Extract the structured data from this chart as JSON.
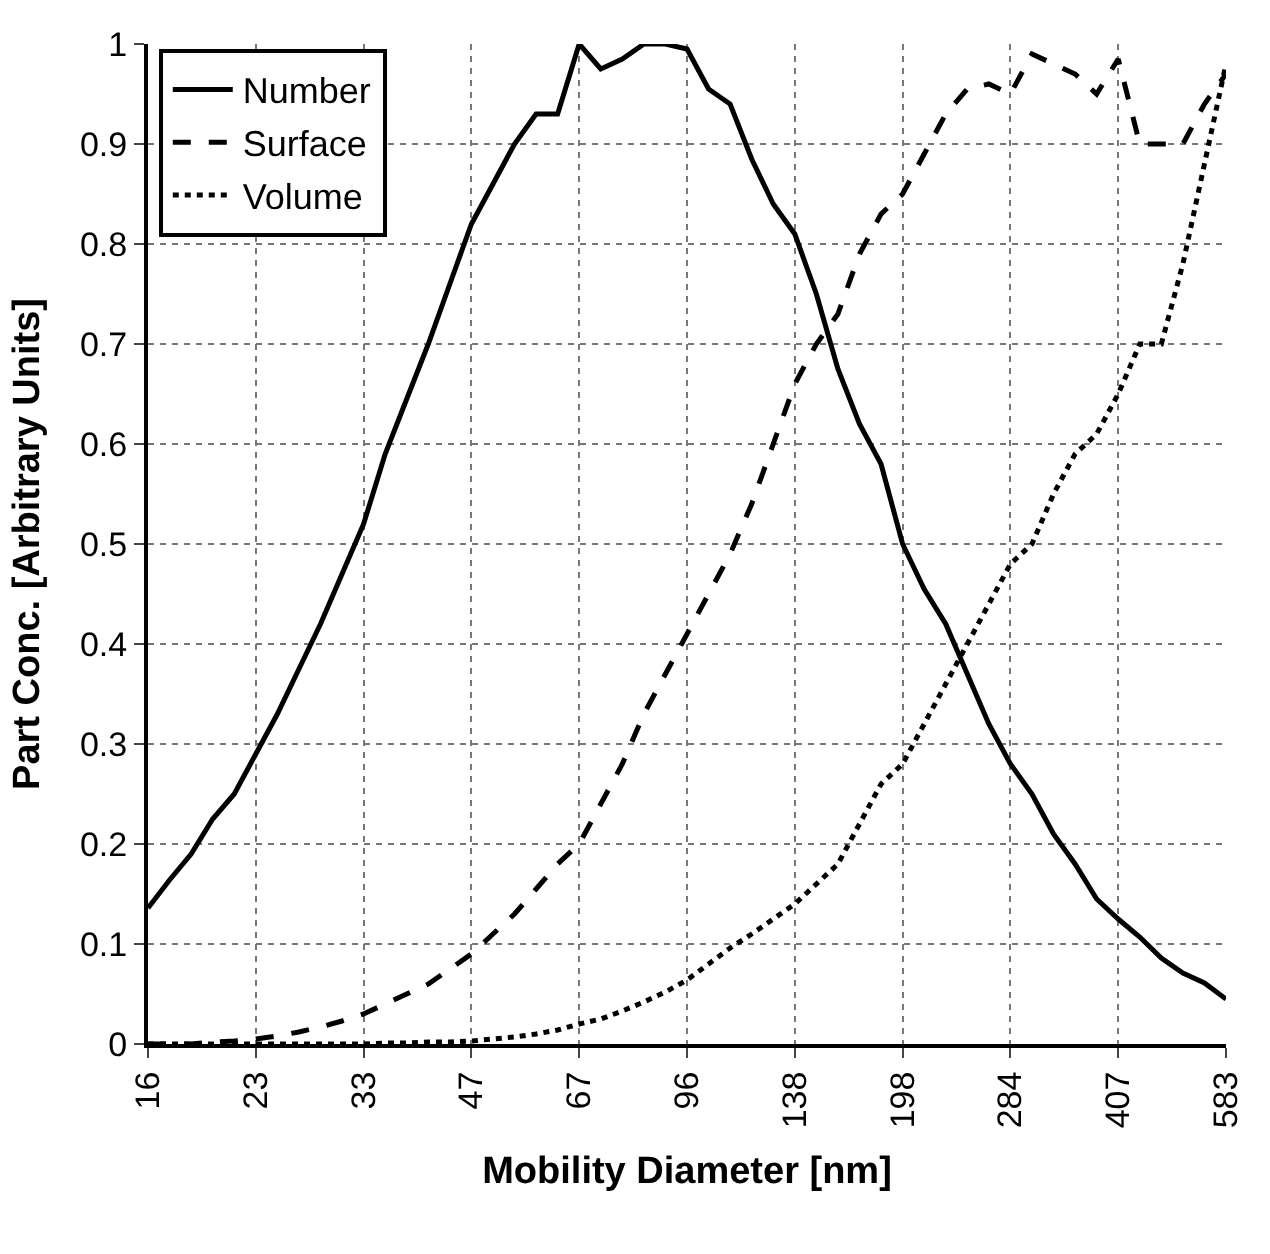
{
  "chart_data": {
    "type": "line",
    "xlabel": "Mobility Diameter [nm]",
    "ylabel": "Part Conc. [Arbitrary Units]",
    "categories": [
      "16",
      null,
      null,
      null,
      null,
      "23",
      null,
      null,
      null,
      null,
      "33",
      null,
      null,
      null,
      null,
      "47",
      null,
      null,
      null,
      null,
      "67",
      null,
      null,
      null,
      null,
      "96",
      null,
      null,
      null,
      null,
      "138",
      null,
      null,
      null,
      null,
      "198",
      null,
      null,
      null,
      null,
      "284",
      null,
      null,
      null,
      null,
      "407",
      null,
      null,
      null,
      null,
      "583"
    ],
    "series": [
      {
        "name": "Number",
        "color": "#000000",
        "line_style": "solid",
        "values": [
          0.136,
          0.164,
          0.19,
          0.225,
          0.25,
          0.29,
          0.33,
          0.375,
          0.42,
          0.47,
          0.52,
          0.59,
          0.645,
          0.7,
          0.76,
          0.82,
          0.86,
          0.9,
          0.93,
          0.93,
          1.0,
          0.975,
          0.985,
          1.0,
          1.0,
          0.995,
          0.955,
          0.94,
          0.885,
          0.84,
          0.81,
          0.75,
          0.675,
          0.62,
          0.58,
          0.5,
          0.455,
          0.42,
          0.37,
          0.32,
          0.28,
          0.25,
          0.21,
          0.18,
          0.145,
          0.125,
          0.107,
          0.086,
          0.071,
          0.061,
          0.045
        ]
      },
      {
        "name": "Surface",
        "color": "#000000",
        "line_style": "dashed",
        "values": [
          0,
          0,
          0,
          0.002,
          0.003,
          0.005,
          0.008,
          0.012,
          0.017,
          0.023,
          0.03,
          0.04,
          0.05,
          0.06,
          0.075,
          0.09,
          0.11,
          0.13,
          0.155,
          0.18,
          0.2,
          0.24,
          0.28,
          0.33,
          0.37,
          0.41,
          0.45,
          0.49,
          0.54,
          0.6,
          0.66,
          0.7,
          0.73,
          0.79,
          0.83,
          0.85,
          0.89,
          0.93,
          0.955,
          0.96,
          0.95,
          0.99,
          0.98,
          0.97,
          0.95,
          0.985,
          0.9,
          0.9,
          0.9,
          0.94,
          0.97
        ]
      },
      {
        "name": "Volume",
        "color": "#000000",
        "line_style": "dotted",
        "values": [
          0,
          0,
          0,
          0,
          0,
          0,
          0,
          0,
          0,
          0,
          0,
          0.001,
          0.001,
          0.002,
          0.002,
          0.003,
          0.005,
          0.007,
          0.01,
          0.014,
          0.02,
          0.025,
          0.033,
          0.042,
          0.052,
          0.064,
          0.08,
          0.096,
          0.11,
          0.125,
          0.14,
          0.16,
          0.18,
          0.22,
          0.26,
          0.28,
          0.32,
          0.36,
          0.4,
          0.44,
          0.48,
          0.5,
          0.55,
          0.59,
          0.61,
          0.65,
          0.7,
          0.7,
          0.78,
          0.88,
          0.98
        ]
      }
    ],
    "ylim": [
      0,
      1
    ],
    "yticks": [
      0,
      0.1,
      0.2,
      0.3,
      0.4,
      0.5,
      0.6,
      0.7,
      0.8,
      0.9,
      1
    ],
    "grid": true,
    "legend": "top left"
  }
}
